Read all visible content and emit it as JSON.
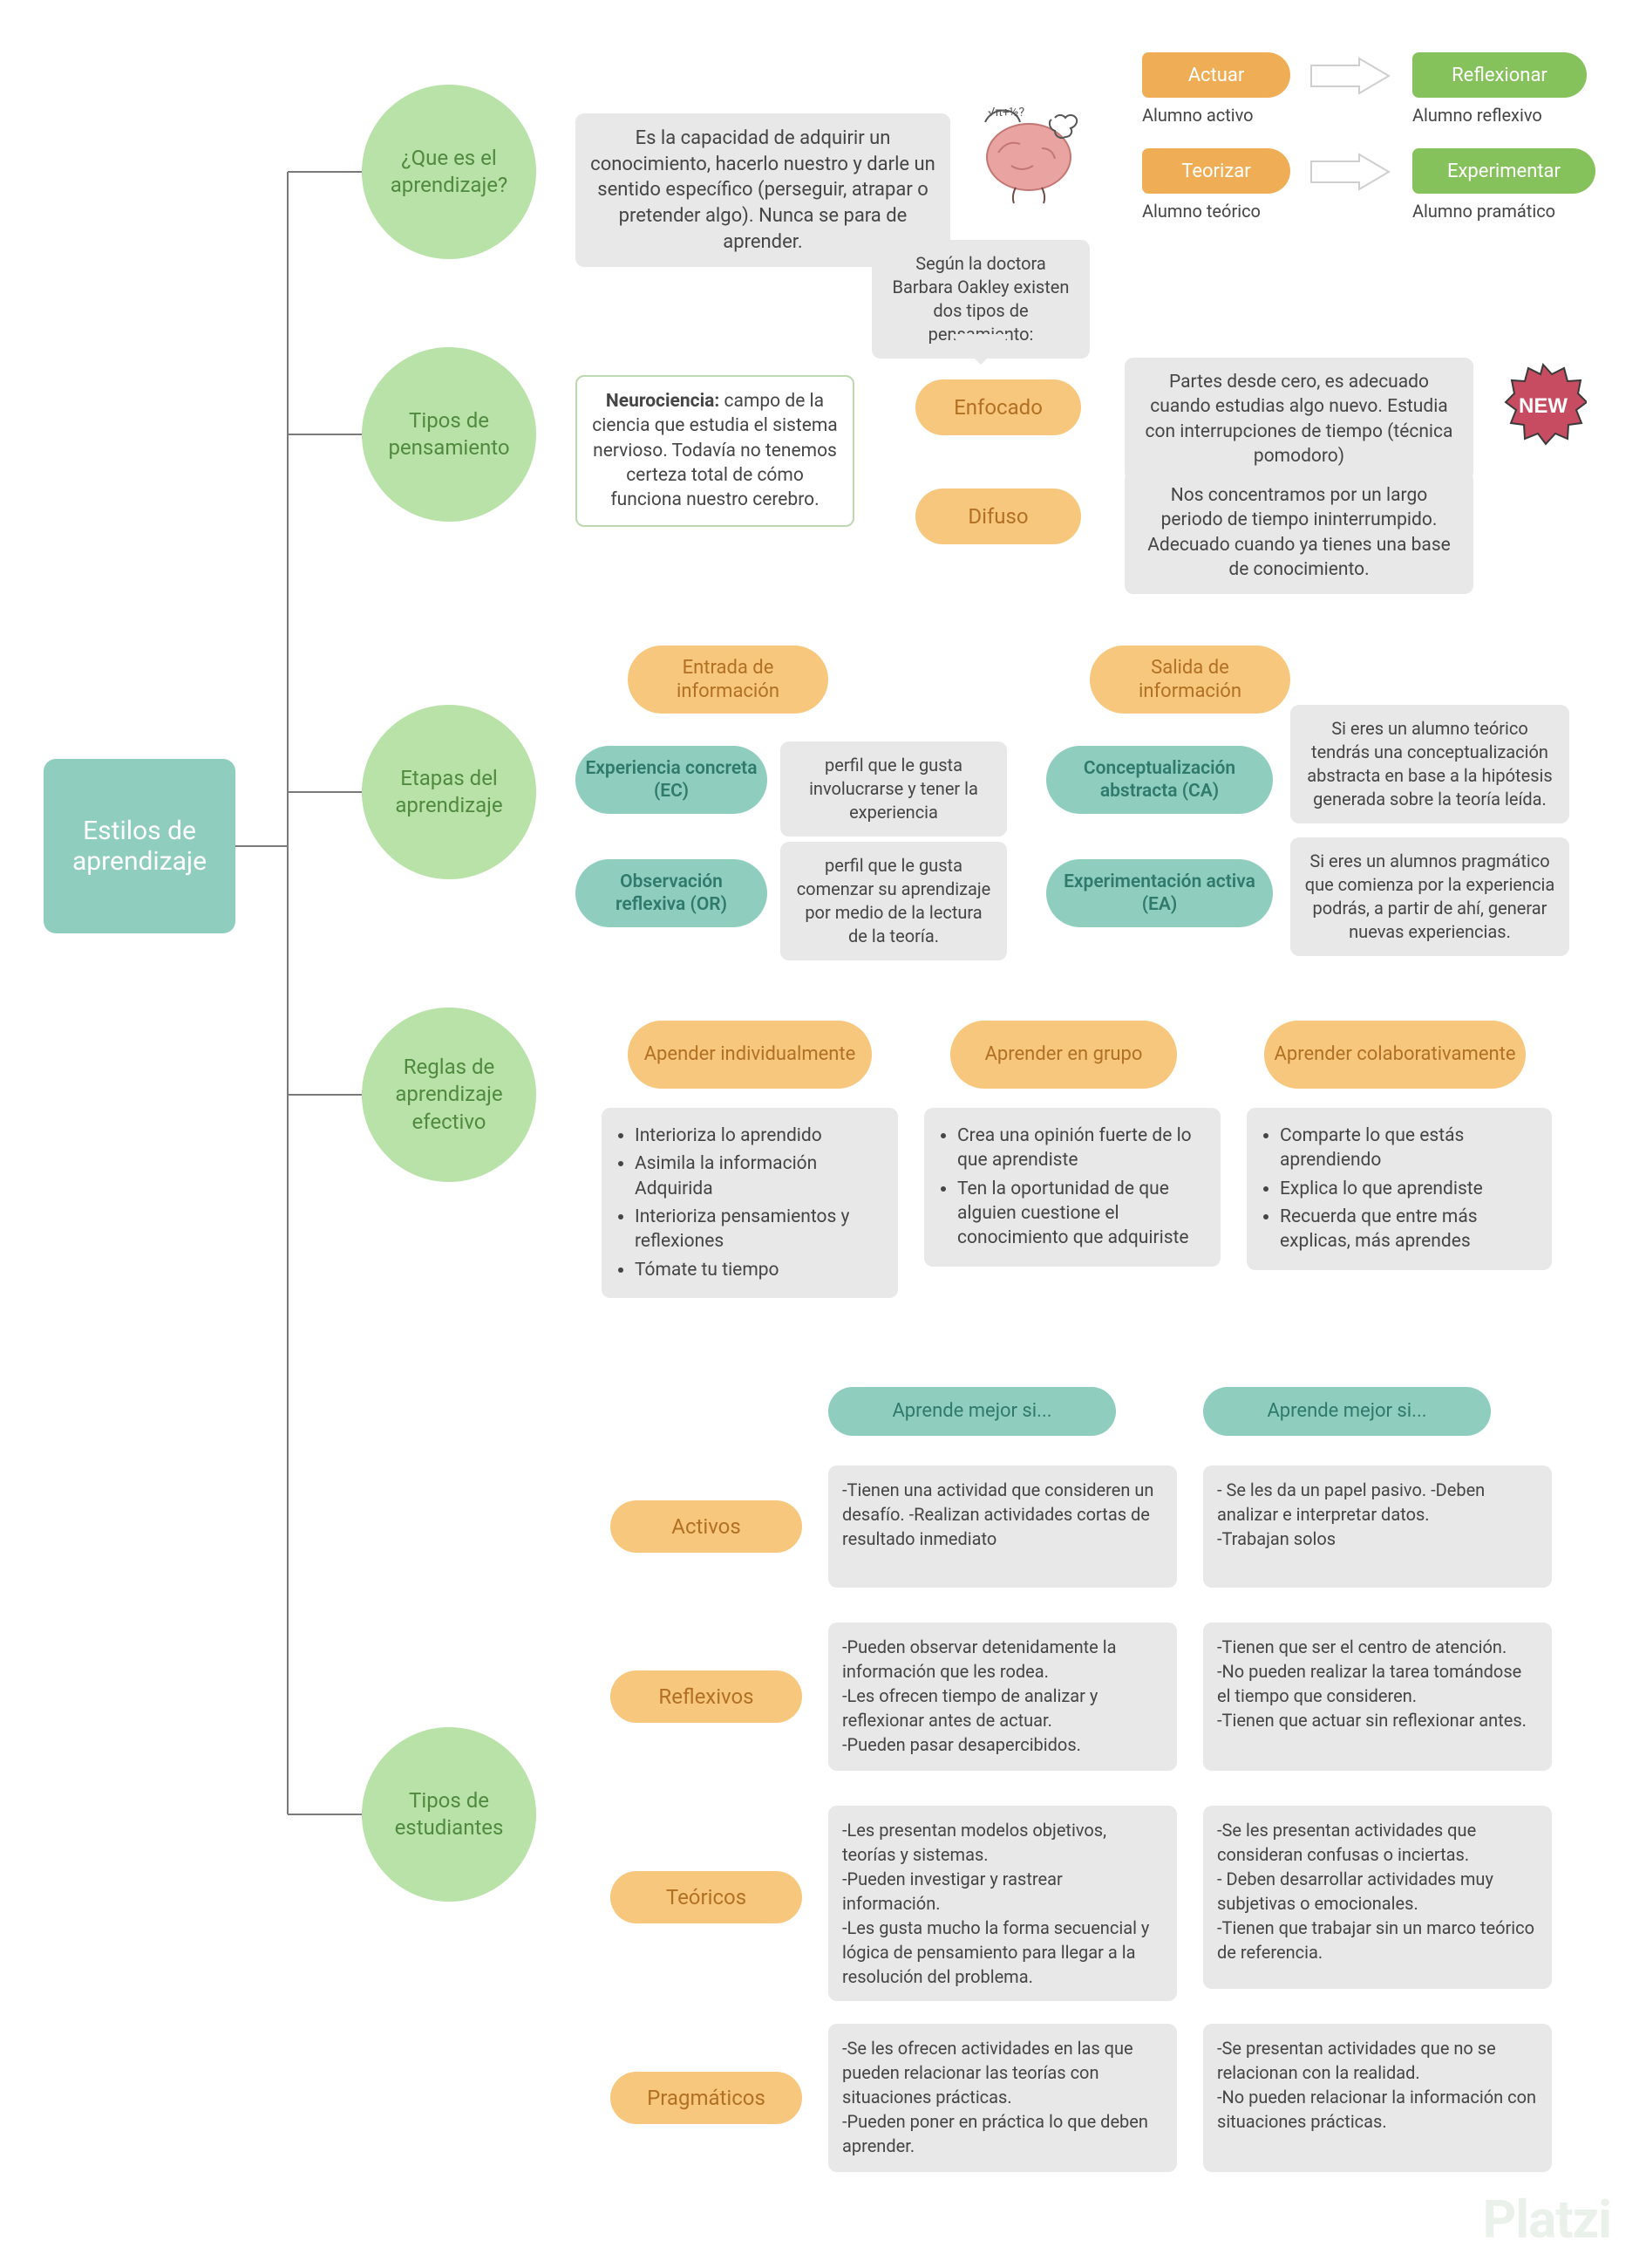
{
  "colors": {
    "bg": "#ffffff",
    "text": "#454545",
    "green_circle": "#b9e2a8",
    "green_circle_text": "#508a3f",
    "teal_bg": "#8fcdbf",
    "teal_text": "#2f7a6b",
    "orange_bg": "#f7c77e",
    "orange_text": "#b27022",
    "grey_box": "#e8e8e8",
    "white_box_border": "#bcd8b0",
    "flag_orange": "#efae56",
    "flag_green": "#86c25c",
    "arrow_grey": "#dcdcdc",
    "connector": "#7a7a7a",
    "new_badge": "#c74b61"
  },
  "root": {
    "label": "Estilos de aprendizaje",
    "fontsize": 30
  },
  "branches": {
    "b1": "¿Que es el aprendizaje?",
    "b2": "Tipos de pensamiento",
    "b3": "Etapas del aprendizaje",
    "b4": "Reglas de aprendizaje efectivo",
    "b5": "Tipos de estudiantes"
  },
  "def_aprendizaje": "Es la capacidad de adquirir un conocimiento, hacerlo nuestro y darle un sentido específico (perseguir, atrapar o pretender algo). Nunca se para de aprender.",
  "barb_oakley": "Según la doctora Barbara Oakley existen dos tipos de pensamiento:",
  "students_top": {
    "actuar": "Actuar",
    "actuar_sub": "Alumno activo",
    "reflexionar": "Reflexionar",
    "reflexionar_sub": "Alumno reflexivo",
    "teorizar": "Teorizar",
    "teorizar_sub": "Alumno teórico",
    "experimentar": "Experimentar",
    "experimentar_sub": "Alumno pramático"
  },
  "neuro_label": "Neurociencia:",
  "neuro_text": "campo de la ciencia que estudia el sistema nervioso. Todavía no tenemos certeza total de cómo funciona nuestro cerebro.",
  "pensamiento": {
    "enfocado": "Enfocado",
    "enfocado_desc": "Partes desde cero, es adecuado cuando estudias algo nuevo. Estudia con interrupciones de tiempo (técnica pomodoro)",
    "difuso": "Difuso",
    "difuso_desc": "Nos concentramos por un largo periodo de tiempo ininterrumpido. Adecuado cuando ya tienes una base de conocimiento."
  },
  "new_text": "NEW",
  "etapas": {
    "entrada": "Entrada de información",
    "salida": "Salida de información",
    "ec": "Experiencia concreta (EC)",
    "ec_desc": "perfil que le gusta involucrarse y tener la experiencia",
    "or": "Observación reflexiva (OR)",
    "or_desc": "perfil que le gusta comenzar su aprendizaje por medio de la lectura de la teoría.",
    "ca": "Conceptualización abstracta (CA)",
    "ca_desc": "Si eres un alumno teórico tendrás una conceptualización abstracta en base a la hipótesis generada sobre la teoría leída.",
    "ea": "Experimentación activa (EA)",
    "ea_desc": "Si eres un alumnos pragmático que comienza por la experiencia podrás, a partir de ahí, generar nuevas experiencias."
  },
  "reglas": {
    "h1": "Apender individualmente",
    "h2": "Aprender en grupo",
    "h3": "Aprender colaborativamente",
    "l1": [
      "Interioriza lo aprendido",
      "Asimila la información Adquirida",
      "Interioriza pensamientos y reflexiones",
      "Tómate tu tiempo"
    ],
    "l2": [
      "Crea una opinión fuerte de lo que aprendiste",
      "Ten la oportunidad de que alguien cuestione el conocimiento que adquiriste"
    ],
    "l3": [
      "Comparte lo que estás aprendiendo",
      "Explica lo que aprendiste",
      "Recuerda que entre más explicas, más aprendes"
    ]
  },
  "tipos": {
    "header": "Aprende mejor si...",
    "rows": {
      "activos": {
        "name": "Activos",
        "good": "-Tienen una actividad que consideren un desafío.          -Realizan actividades cortas de resultado inmediato",
        "bad": "- Se les da un papel pasivo.  -Deben analizar e interpretar datos.\n-Trabajan solos"
      },
      "reflexivos": {
        "name": "Reflexivos",
        "good": "-Pueden observar detenidamente la información que les rodea.\n-Les ofrecen tiempo de analizar y reflexionar antes de actuar.\n-Pueden pasar desapercibidos.",
        "bad": "-Tienen que ser el centro de atención.\n-No pueden realizar la tarea tomándose el tiempo que consideren.\n-Tienen que actuar sin reflexionar antes."
      },
      "teoricos": {
        "name": "Teóricos",
        "good": "-Les presentan modelos objetivos, teorías y sistemas.\n-Pueden investigar y rastrear información.\n-Les gusta mucho la forma secuencial y lógica de pensamiento para llegar a la resolución del problema.",
        "bad": "-Se les presentan actividades que consideran confusas o inciertas.\n- Deben desarrollar actividades muy subjetivas o emocionales.\n-Tienen que trabajar sin un marco teórico de referencia."
      },
      "pragmaticos": {
        "name": "Pragmáticos",
        "good": "-Se les ofrecen actividades en las que pueden relacionar las teorías con situaciones prácticas.\n-Pueden poner en práctica lo que deben aprender.",
        "bad": "-Se presentan actividades que no se relacionan con la realidad.\n-No pueden relacionar la información con situaciones prácticas."
      }
    }
  },
  "watermark": "Platzi",
  "sizes": {
    "circle_main": 200,
    "circle_root": 230,
    "pill_fs": 22,
    "box_fs": 22,
    "sub_fs": 20
  }
}
